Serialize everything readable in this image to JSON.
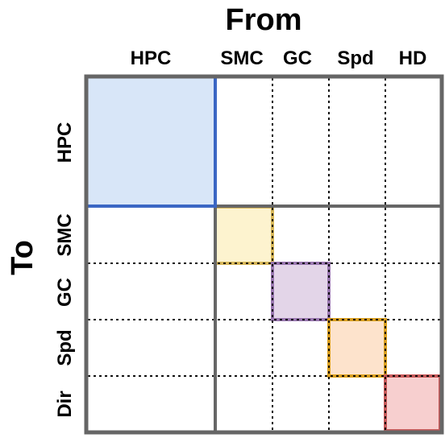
{
  "title_from": "From",
  "title_to": "To",
  "columns": [
    "HPC",
    "SMC",
    "GC",
    "Spd",
    "HD"
  ],
  "rows": [
    "HPC",
    "SMC",
    "GC",
    "Spd",
    "Dir"
  ],
  "blocks": [
    {
      "name": "hpc-block",
      "fill": "#d8e6f8",
      "stroke": "#3a66c4"
    },
    {
      "name": "smc-block",
      "fill": "#fdf3cf",
      "stroke": "#d8b85a"
    },
    {
      "name": "gc-block",
      "fill": "#e3d5e8",
      "stroke": "#9a78b0"
    },
    {
      "name": "spd-block",
      "fill": "#fde3cc",
      "stroke": "#dba020"
    },
    {
      "name": "dir-block",
      "fill": "#f7cfcf",
      "stroke": "#c85a5a"
    }
  ],
  "colors": {
    "frame": "#666666",
    "dotted": "#111111"
  }
}
